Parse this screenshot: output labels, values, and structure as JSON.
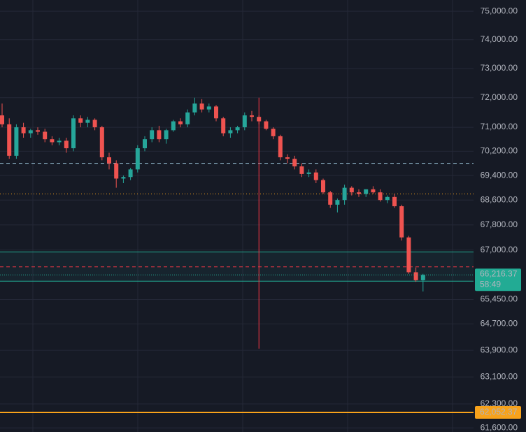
{
  "chart_data": {
    "type": "candlestick",
    "log_scale": true,
    "grid": true,
    "up_color": "#26a69a",
    "down_color": "#ef5350",
    "ylim": [
      61480,
      75400
    ],
    "yticks": [
      {
        "value": 75000,
        "label": "75,000.00"
      },
      {
        "value": 74000,
        "label": "74,000.00"
      },
      {
        "value": 73000,
        "label": "73,000.00"
      },
      {
        "value": 72000,
        "label": "72,000.00"
      },
      {
        "value": 71000,
        "label": "71,000.00"
      },
      {
        "value": 70200,
        "label": "70,200.00"
      },
      {
        "value": 69400,
        "label": "69,400.00"
      },
      {
        "value": 68600,
        "label": "68,600.00"
      },
      {
        "value": 67800,
        "label": "67,800.00"
      },
      {
        "value": 67000,
        "label": "67,000.00"
      },
      {
        "value": 65450,
        "label": "65,450.00"
      },
      {
        "value": 64700,
        "label": "64,700.00"
      },
      {
        "value": 63900,
        "label": "63,900.00"
      },
      {
        "value": 63100,
        "label": "63,100.00"
      },
      {
        "value": 62300,
        "label": "62,300.00"
      },
      {
        "value": 61600,
        "label": "61,600.00"
      }
    ],
    "open": [
      71400,
      71100,
      70050,
      71000,
      70800,
      70900,
      70850,
      70600,
      70500,
      70550,
      70300,
      71300,
      71150,
      71250,
      71000,
      70000,
      69800,
      69300,
      69350,
      69600,
      70300,
      70600,
      70900,
      70600,
      70900,
      71200,
      71100,
      71500,
      71800,
      71600,
      71700,
      71300,
      70800,
      70900,
      71000,
      71400,
      71350,
      71200,
      70950,
      70700,
      70000,
      69950,
      69700,
      69450,
      69500,
      69250,
      68850,
      68450,
      68600,
      69000,
      68850,
      68800,
      68950,
      68850,
      68600,
      68700,
      68400,
      67400,
      66300,
      66050
    ],
    "high": [
      71800,
      71300,
      71100,
      71150,
      70950,
      71000,
      70950,
      70700,
      70650,
      70650,
      71400,
      71400,
      71350,
      71300,
      71050,
      70150,
      69900,
      69400,
      69650,
      70400,
      70700,
      71000,
      71050,
      70950,
      71250,
      71300,
      71600,
      72000,
      71950,
      71800,
      71750,
      71350,
      71000,
      71050,
      71500,
      71550,
      71400,
      71250,
      71000,
      70750,
      70100,
      70050,
      69800,
      69600,
      69600,
      69300,
      68900,
      68650,
      69100,
      69050,
      68950,
      68950,
      69050,
      68950,
      68750,
      68800,
      68450,
      67450,
      66450,
      66250
    ],
    "low": [
      71000,
      69950,
      69950,
      70650,
      70650,
      70750,
      70500,
      70400,
      70400,
      70150,
      70200,
      71000,
      71000,
      70900,
      69900,
      69600,
      69000,
      69150,
      69250,
      69500,
      70200,
      70500,
      70500,
      70450,
      70850,
      71000,
      71000,
      71400,
      71500,
      71500,
      71200,
      70700,
      70650,
      70800,
      70900,
      71200,
      71100,
      70900,
      70600,
      69900,
      69800,
      69600,
      69350,
      69350,
      69150,
      68800,
      68350,
      68200,
      68450,
      68750,
      68700,
      68700,
      68800,
      68550,
      68500,
      68350,
      67300,
      66250,
      66000,
      65700
    ],
    "close": [
      71100,
      70050,
      71000,
      70800,
      70900,
      70850,
      70600,
      70500,
      70550,
      70300,
      71300,
      71150,
      71250,
      71000,
      70000,
      69800,
      69300,
      69350,
      69600,
      70300,
      70600,
      70900,
      70600,
      70900,
      71200,
      71100,
      71500,
      71800,
      71600,
      71700,
      71300,
      70800,
      70900,
      71000,
      71400,
      71350,
      71200,
      70950,
      70700,
      70000,
      69950,
      69700,
      69450,
      69500,
      69250,
      68850,
      68450,
      68600,
      69000,
      68850,
      68800,
      68950,
      68850,
      68600,
      68700,
      68400,
      67400,
      66300,
      66050,
      66216.37
    ],
    "levels": [
      {
        "value": 69800,
        "color": "#9ecbe0",
        "style": "dashed"
      },
      {
        "value": 68800,
        "color": "#f7a21b",
        "style": "dotted"
      },
      {
        "value": 66470,
        "color": "#f23645",
        "style": "dashed"
      }
    ],
    "zone": {
      "top": 66940,
      "bottom": 66020,
      "color": "#22ab94"
    },
    "vertical_marker": {
      "candle": 36,
      "top": 72000,
      "bottom": 63950,
      "color": "#f23645"
    },
    "last_price": {
      "value": 66216.37,
      "label": "66,216.37",
      "countdown": "58:49",
      "color": "#22ab94"
    },
    "alert_price": {
      "value": 62052.37,
      "label": "62,052.37",
      "color": "#f7a21b"
    }
  }
}
